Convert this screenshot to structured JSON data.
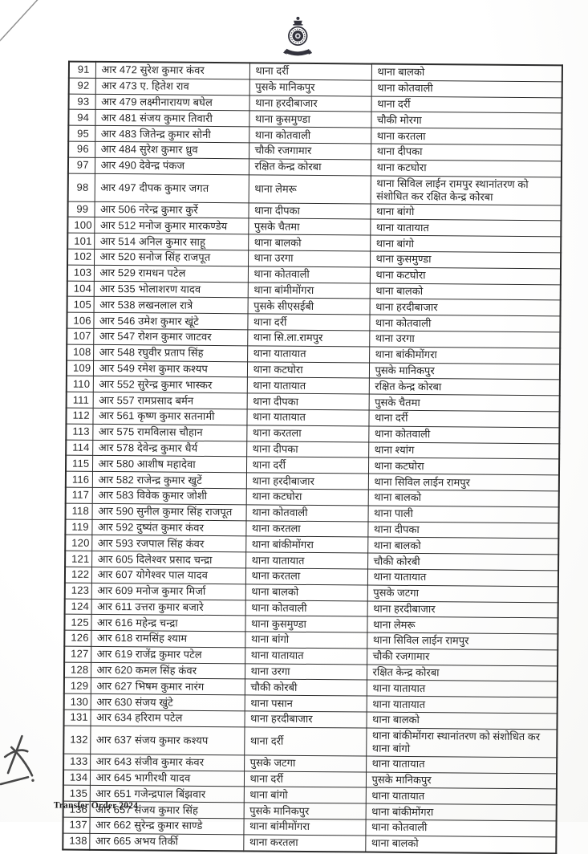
{
  "document": {
    "footer_label": "Transfer Order 2024"
  },
  "table": {
    "rows": [
      {
        "sn": "91",
        "name": "आर 472 सुरेश कुमार कंवर",
        "from": "थाना दर्री",
        "to": "थाना बालको"
      },
      {
        "sn": "92",
        "name": "आर 473 ए. हितेश राव",
        "from": "पुसके मानिकपुर",
        "to": "थाना कोतवाली"
      },
      {
        "sn": "93",
        "name": "आर 479 लक्ष्मीनारायण बघेल",
        "from": "थाना हरदीबाजार",
        "to": "थाना दर्री"
      },
      {
        "sn": "94",
        "name": "आर 481 संजय कुमार तिवारी",
        "from": "थाना कुसमुण्डा",
        "to": "चौकी मोरगा"
      },
      {
        "sn": "95",
        "name": "आर 483 जितेन्द्र कुमार सोनी",
        "from": "थाना कोतवाली",
        "to": "थाना करतला"
      },
      {
        "sn": "96",
        "name": "आर 484 सुरेश कुमार ध्रुव",
        "from": "चौकी रजगामार",
        "to": "थाना दीपका"
      },
      {
        "sn": "97",
        "name": "आर 490 देवेन्द्र पंकज",
        "from": "रक्षित केन्द्र कोरबा",
        "to": "थाना कटघोरा"
      },
      {
        "sn": "98",
        "name": "आर 497 दीपक कुमार जगत",
        "from": "थाना लेमरू",
        "to": "थाना सिविल लाईन रामपुर स्थानांतरण को संशोधित कर रक्षित केन्द्र कोरबा"
      },
      {
        "sn": "99",
        "name": "आर 506 नरेन्द्र कुमार कुर्रे",
        "from": "थाना दीपका",
        "to": "थाना बांगो"
      },
      {
        "sn": "100",
        "name": "आर 512 मनोज कुमार मारकण्डेय",
        "from": "पुसके चैतमा",
        "to": "थाना यातायात"
      },
      {
        "sn": "101",
        "name": "आर 514 अनिल कुमार साहू",
        "from": "थाना बालको",
        "to": "थाना बांगो"
      },
      {
        "sn": "102",
        "name": "आर 520 सनोज सिंह राजपूत",
        "from": "थाना उरगा",
        "to": "थाना कुसमुण्डा"
      },
      {
        "sn": "103",
        "name": "आर 529 रामधन पटेल",
        "from": "थाना कोतवाली",
        "to": "थाना कटघोरा"
      },
      {
        "sn": "104",
        "name": "आर 535 भोलाशरण यादव",
        "from": "थाना बांमीमोंगरा",
        "to": "थाना बालको"
      },
      {
        "sn": "105",
        "name": "आर 538 लखनलाल रात्रे",
        "from": "पुसके सीएसईबी",
        "to": "थाना हरदीबाजार"
      },
      {
        "sn": "106",
        "name": "आर 546 उमेश कुमार खूंटे",
        "from": "थाना दर्री",
        "to": "थाना कोतवाली"
      },
      {
        "sn": "107",
        "name": "आर 547 रोशन कुमार जाटवर",
        "from": "थाना सि.ला.रामपुर",
        "to": "थाना उरगा"
      },
      {
        "sn": "108",
        "name": "आर 548 रघुवीर प्रताप सिंह",
        "from": "थाना यातायात",
        "to": "थाना बांकीमोंगरा"
      },
      {
        "sn": "109",
        "name": "आर 549 रमेश कुमार कश्यप",
        "from": "थाना कटघोरा",
        "to": "पुसके मानिकपुर"
      },
      {
        "sn": "110",
        "name": "आर 552 सुरेन्द्र कुमार भास्कर",
        "from": "थाना यातायात",
        "to": "रक्षित केन्द्र कोरबा"
      },
      {
        "sn": "111",
        "name": "आर 557 रामप्रसाद बर्मन",
        "from": "थाना दीपका",
        "to": "पुसके चैतमा"
      },
      {
        "sn": "112",
        "name": "आर 561 कृष्ण कुमार सतनामी",
        "from": "थाना यातायात",
        "to": "थाना दर्री"
      },
      {
        "sn": "113",
        "name": "आर 575 रामविलास चौहान",
        "from": "थाना करतला",
        "to": "थाना कोतवाली"
      },
      {
        "sn": "114",
        "name": "आर 578 देवेन्द्र कुमार धैर्य",
        "from": "थाना दीपका",
        "to": "थाना श्यांग"
      },
      {
        "sn": "115",
        "name": "आर 580 आशीष महादेवा",
        "from": "थाना दर्री",
        "to": "थाना कटघोरा"
      },
      {
        "sn": "116",
        "name": "आर 582 राजेन्द्र कुमार खुटें",
        "from": "थाना हरदीबाजार",
        "to": "थाना सिविल लाईन रामपुर"
      },
      {
        "sn": "117",
        "name": "आर 583 विवेक कुमार जोशी",
        "from": "थाना कटघोरा",
        "to": "थाना बालको"
      },
      {
        "sn": "118",
        "name": "आर 590 सुनील कुमार सिंह राजपूत",
        "from": "थाना कोतवाली",
        "to": "थाना पाली"
      },
      {
        "sn": "119",
        "name": "आर 592 दुष्यंत कुमार कंवर",
        "from": "थाना करतला",
        "to": "थाना दीपका"
      },
      {
        "sn": "120",
        "name": "आर 593 रजपाल सिंह कंवर",
        "from": "थाना बांकीमोंगरा",
        "to": "थाना बालको"
      },
      {
        "sn": "121",
        "name": "आर 605 दिलेश्वर प्रसाद चन्द्रा",
        "from": "थाना यातायात",
        "to": "चौकी कोरबी"
      },
      {
        "sn": "122",
        "name": "आर 607 योगेश्वर पाल यादव",
        "from": "थाना करतला",
        "to": "थाना यातायात"
      },
      {
        "sn": "123",
        "name": "आर 609 मनोज कुमार मिर्जा",
        "from": "थाना बालको",
        "to": "पुसके जटगा"
      },
      {
        "sn": "124",
        "name": "आर 611 उत्तरा कुमार बजारे",
        "from": "थाना कोतवाली",
        "to": "थाना हरदीबाजार"
      },
      {
        "sn": "125",
        "name": "आर 616 महेन्द्र चन्द्रा",
        "from": "थाना कुसमुण्डा",
        "to": "थाना लेमरू"
      },
      {
        "sn": "126",
        "name": "आर 618 रामसिंह श्याम",
        "from": "थाना बांगो",
        "to": "थाना सिविल लाईन रामपुर"
      },
      {
        "sn": "127",
        "name": "आर 619 राजेंद्र कुमार पटेल",
        "from": "थाना यातायात",
        "to": "चौकी रजगामार"
      },
      {
        "sn": "128",
        "name": "आर 620 कमल सिंह कंवर",
        "from": "थाना उरगा",
        "to": "रक्षित केन्द्र कोरबा"
      },
      {
        "sn": "129",
        "name": "आर 627 भिषम कुमार नारंग",
        "from": "चौकी कोरबी",
        "to": "थाना यातायात"
      },
      {
        "sn": "130",
        "name": "आर 630 संजय खुंटे",
        "from": "थाना पसान",
        "to": "थाना यातायात"
      },
      {
        "sn": "131",
        "name": "आर 634 हरिराम पटेल",
        "from": "थाना हरदीबाजार",
        "to": "थाना बालको"
      },
      {
        "sn": "132",
        "name": "आर 637 संजय कुमार कश्यप",
        "from": "थाना दर्री",
        "to": "थाना बांकीमोंगरा स्थानांतरण को संशोधित कर थाना बांगो"
      },
      {
        "sn": "133",
        "name": "आर 643 संजीव कुमार कंवर",
        "from": "पुसके जटगा",
        "to": "थाना यातायात"
      },
      {
        "sn": "134",
        "name": "आर 645 भागीरथी यादव",
        "from": "थाना दर्री",
        "to": "पुसके मानिकपुर"
      },
      {
        "sn": "135",
        "name": "आर 651 गजेन्द्रपाल बिंझवार",
        "from": "थाना बांगो",
        "to": "थाना यातायात"
      },
      {
        "sn": "136",
        "name": "आर 657 संजय कुमार सिंह",
        "from": "पुसके मानिकपुर",
        "to": "थाना बांकीमोंगरा"
      },
      {
        "sn": "137",
        "name": "आर 662 सुरेन्द्र कुमार साण्डे",
        "from": "थाना बांमीमोंगरा",
        "to": "थाना कोतवाली"
      },
      {
        "sn": "138",
        "name": "आर 665 अभय तिर्की",
        "from": "थाना करतला",
        "to": "थाना बालको"
      }
    ]
  }
}
